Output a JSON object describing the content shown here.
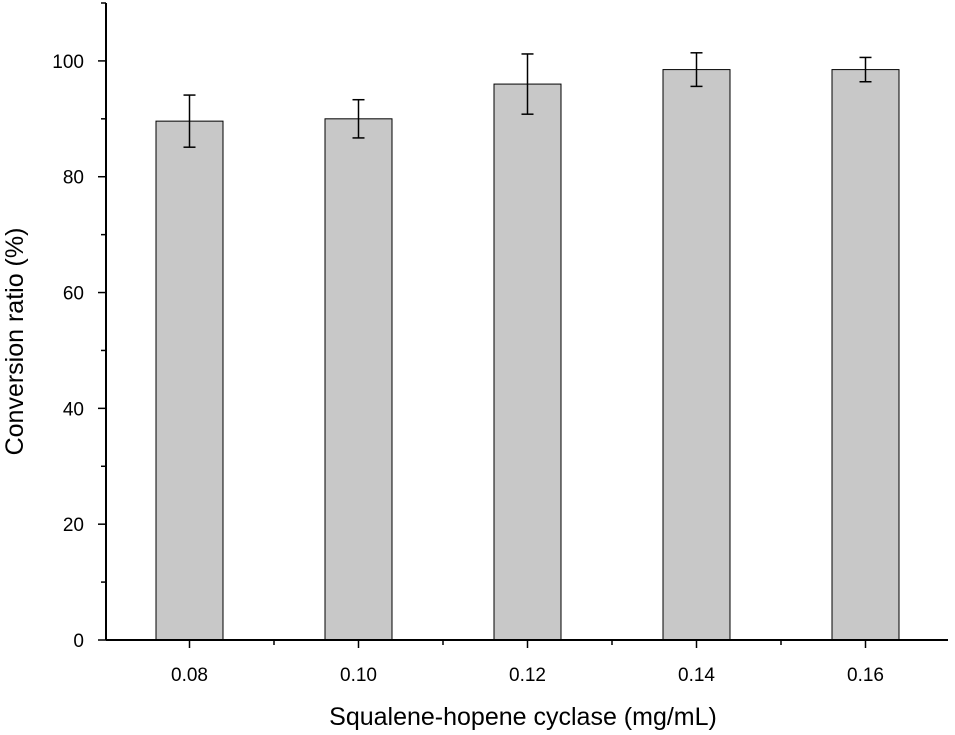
{
  "chart_data": {
    "type": "bar",
    "title": "",
    "xlabel": "Squalene-hopene cyclase (mg/mL)",
    "ylabel": "Conversion ratio (%)",
    "categories": [
      "0.08",
      "0.10",
      "0.12",
      "0.14",
      "0.16"
    ],
    "values": [
      89.6,
      90.0,
      96.0,
      98.5,
      98.5
    ],
    "error": [
      4.5,
      3.3,
      5.2,
      2.9,
      2.1
    ],
    "ylim": [
      0,
      110
    ],
    "yticks": [
      0,
      20,
      40,
      60,
      80,
      100
    ],
    "yticks_minor_step": 10,
    "grid": false,
    "legend": "none",
    "colors": {
      "bar_fill": "#c8c8c8",
      "bar_edge": "#000000",
      "axis": "#000000"
    }
  }
}
